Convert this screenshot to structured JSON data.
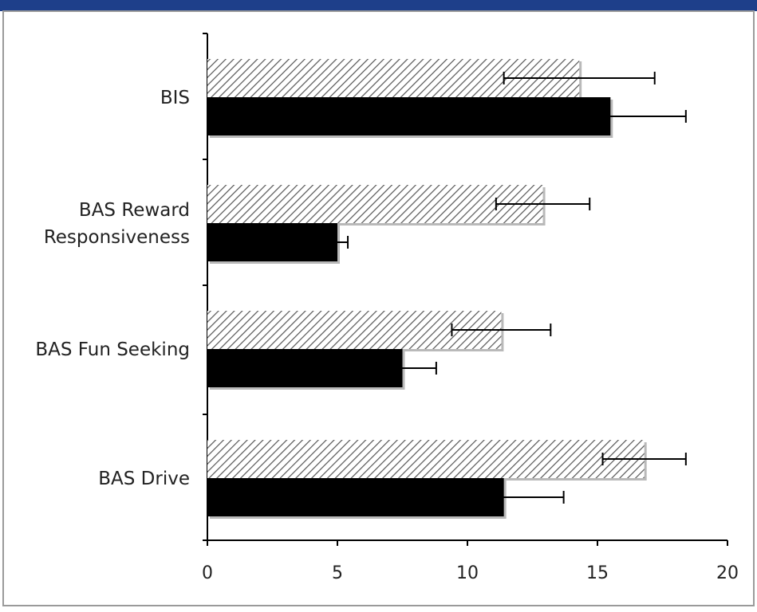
{
  "chart_data": {
    "type": "bar",
    "orientation": "horizontal",
    "categories": [
      [
        "BIS"
      ],
      [
        "BAS Reward",
        "Responsiveness"
      ],
      [
        "BAS Fun Seeking"
      ],
      [
        "BAS Drive"
      ]
    ],
    "series": [
      {
        "pattern": "diagonal-hatch",
        "color": "#555555",
        "values": [
          14.3,
          12.9,
          11.3,
          16.8
        ],
        "errors": [
          2.9,
          1.8,
          1.9,
          1.6
        ]
      },
      {
        "pattern": "solid",
        "color": "#000000",
        "values": [
          15.5,
          5.0,
          7.5,
          11.4
        ],
        "errors": [
          2.9,
          0.4,
          1.3,
          2.3
        ]
      }
    ],
    "xlim": [
      0,
      20
    ],
    "xticks": [
      "0",
      "5",
      "10",
      "15",
      "20"
    ],
    "grid": false,
    "frame_color": "#1e3f8a"
  }
}
